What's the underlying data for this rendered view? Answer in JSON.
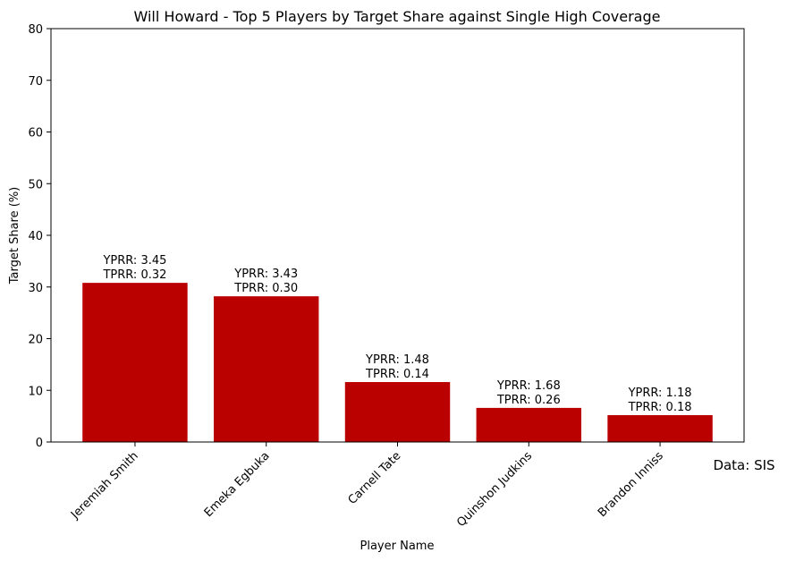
{
  "chart_data": {
    "type": "bar",
    "title": "Will Howard - Top 5 Players by Target Share against Single High Coverage",
    "xlabel": "Player Name",
    "ylabel": "Target Share (%)",
    "ylim": [
      0,
      80
    ],
    "yticks": [
      0,
      10,
      20,
      30,
      40,
      50,
      60,
      70,
      80
    ],
    "grid": false,
    "categories": [
      "Jeremiah Smith",
      "Emeka Egbuka",
      "Carnell Tate",
      "Quinshon Judkins",
      "Brandon Inniss"
    ],
    "values": [
      30.8,
      28.2,
      11.6,
      6.6,
      5.2
    ],
    "bar_labels": [
      [
        "YPRR: 3.45",
        "TPRR: 0.32"
      ],
      [
        "YPRR: 3.43",
        "TPRR: 0.30"
      ],
      [
        "YPRR: 1.48",
        "TPRR: 0.14"
      ],
      [
        "YPRR: 1.68",
        "TPRR: 0.26"
      ],
      [
        "YPRR: 1.18",
        "TPRR: 0.18"
      ]
    ],
    "bar_color": "#bb0000",
    "credit": "Data: SIS"
  }
}
